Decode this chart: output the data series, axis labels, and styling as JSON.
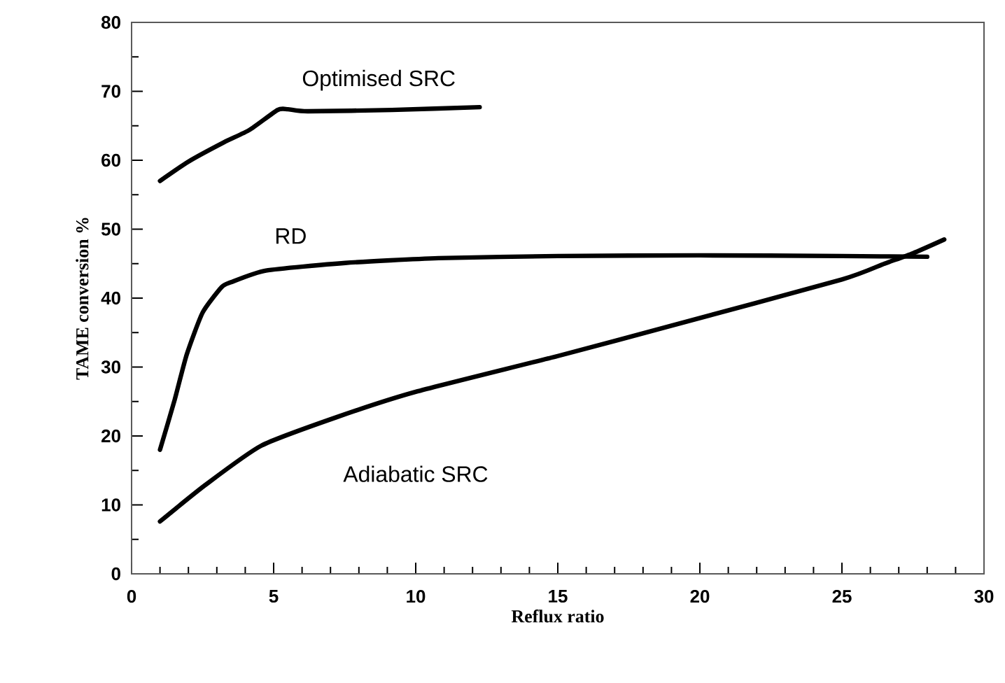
{
  "chart_data": {
    "type": "line",
    "xlabel": "Reflux ratio",
    "ylabel": "TAME conversion %",
    "xlim": [
      0,
      30
    ],
    "ylim": [
      0,
      80
    ],
    "xticks": [
      0,
      5,
      10,
      15,
      20,
      25,
      30
    ],
    "yticks": [
      0,
      10,
      20,
      30,
      40,
      50,
      60,
      70,
      80
    ],
    "grid": false,
    "legend": false,
    "marker": "none",
    "line_style": "solid",
    "series": [
      {
        "name": "Optimised SRC",
        "color": "#000000",
        "x": [
          1,
          2,
          3.25,
          4.15,
          5.14,
          5.5,
          6.2,
          9.16,
          12.25
        ],
        "values": [
          57,
          59.8,
          62.6,
          64.4,
          67.3,
          67.4,
          67.1,
          67.3,
          67.7
        ]
      },
      {
        "name": "RD",
        "color": "#000000",
        "x": [
          1,
          1.5,
          1.94,
          2.5,
          3.17,
          3.5,
          4.73,
          7.52,
          10.8,
          15,
          20,
          25,
          28
        ],
        "values": [
          18,
          25,
          31.8,
          37.9,
          41.6,
          42.3,
          44,
          45.1,
          45.8,
          46.1,
          46.2,
          46.1,
          46
        ]
      },
      {
        "name": "Adiabatic SRC",
        "color": "#000000",
        "x": [
          1,
          2.6,
          4.57,
          7.2,
          10,
          15,
          19,
          25,
          26.5,
          27.5,
          28.6
        ],
        "values": [
          7.6,
          12.9,
          18.6,
          22.7,
          26.4,
          31.6,
          36,
          42.7,
          45,
          46.5,
          48.5
        ]
      }
    ]
  }
}
